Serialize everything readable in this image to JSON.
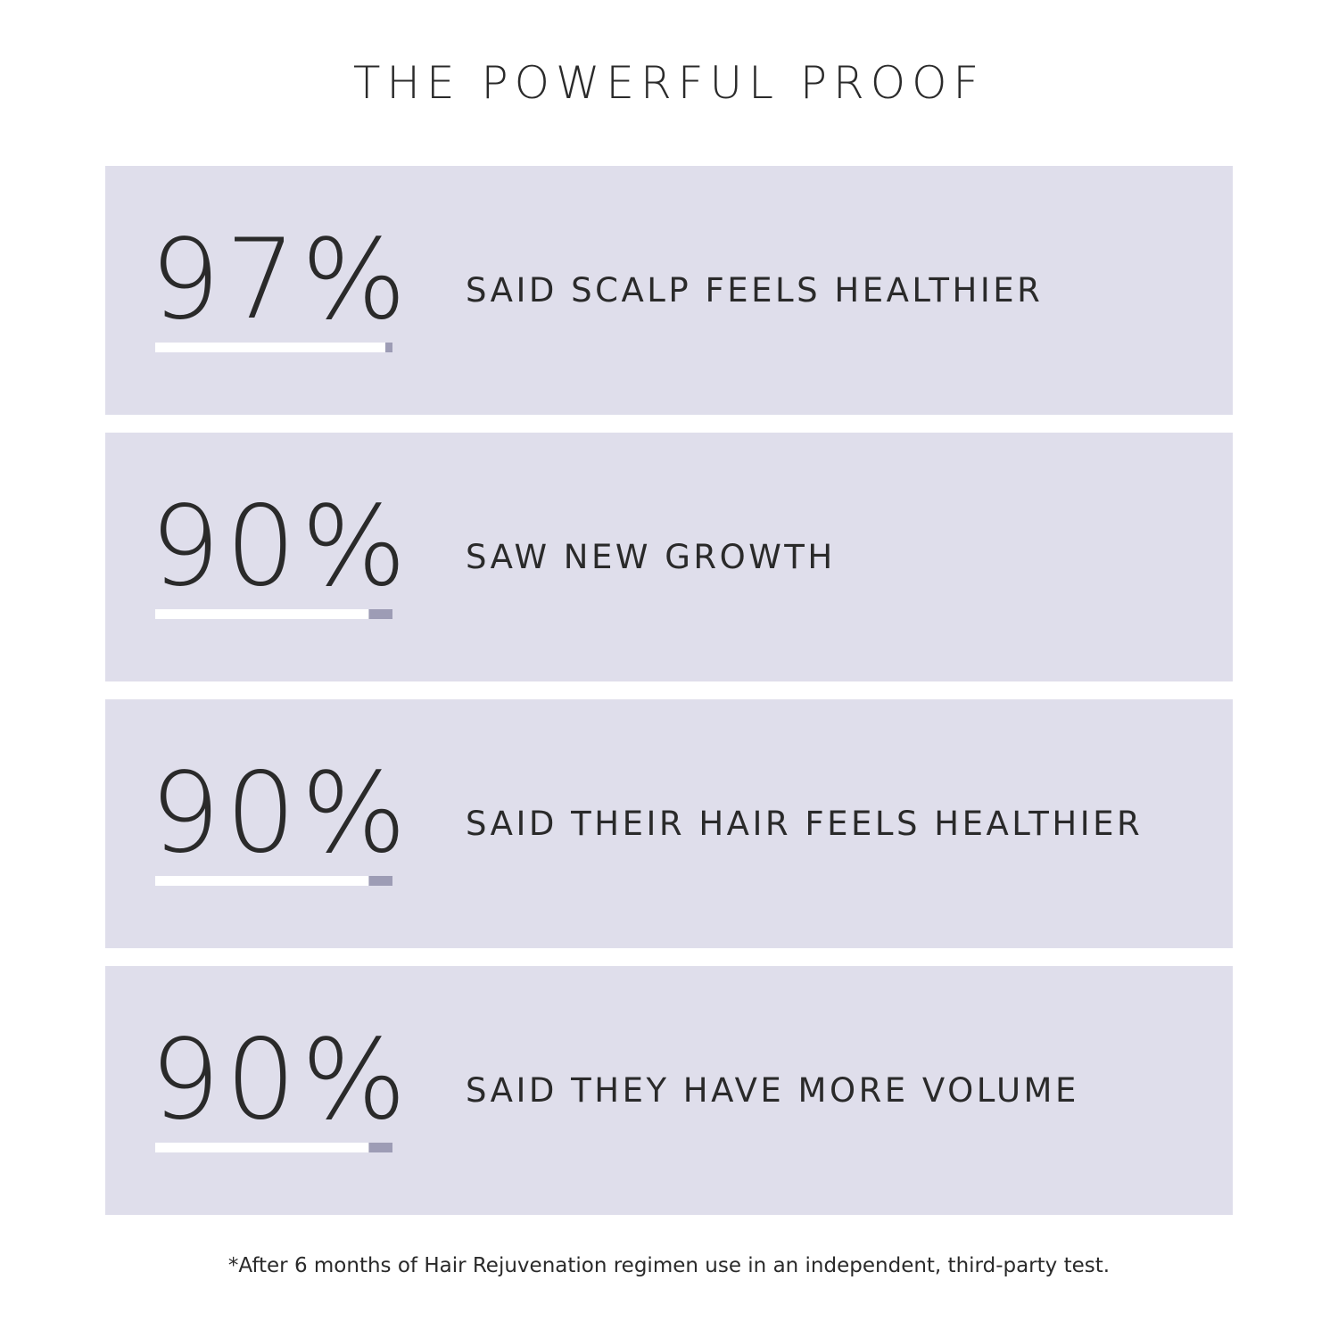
{
  "chart_data": {
    "type": "bar",
    "title": "THE POWERFUL PROOF",
    "categories": [
      "SAID SCALP FEELS HEALTHIER",
      "SAW NEW GROWTH",
      "SAID THEIR HAIR FEELS HEALTHIER",
      "SAID THEY HAVE MORE VOLUME"
    ],
    "values": [
      97,
      90,
      90,
      90
    ],
    "value_labels": [
      "97%",
      "90%",
      "90%",
      "90%"
    ],
    "xlim": [
      0,
      100
    ],
    "color": "#ffffff",
    "track_color": "#9d9cb5",
    "panel_color": "#dfdeeb",
    "footnote": "*After 6 months of Hair Rejuvenation regimen use in an independent, third-party test."
  }
}
